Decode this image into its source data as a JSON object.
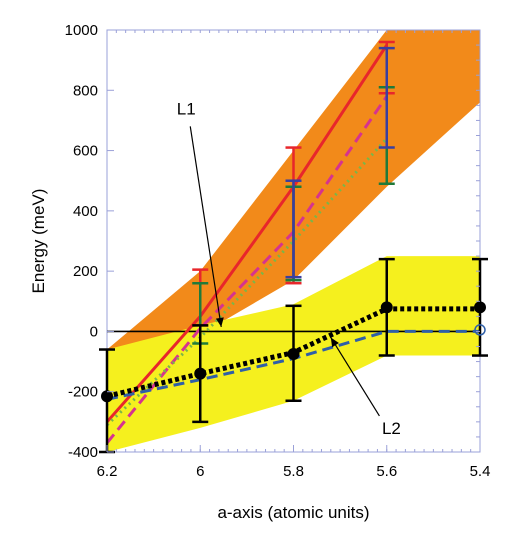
{
  "chart_data": {
    "type": "line",
    "title": "",
    "xlabel": "a-axis (atomic units)",
    "ylabel": "Energy (meV)",
    "xlim": [
      6.2,
      5.4
    ],
    "ylim": [
      -400,
      1000
    ],
    "x_ticks": [
      6.2,
      6.0,
      5.8,
      5.6,
      5.4
    ],
    "x_tick_labels": [
      "6.2",
      "6",
      "5.8",
      "5.6",
      "5.4"
    ],
    "y_ticks": [
      -400,
      -200,
      0,
      200,
      400,
      600,
      800,
      1000
    ],
    "y_tick_labels": [
      "-400",
      "-200",
      "0",
      "200",
      "400",
      "600",
      "800",
      "1000"
    ],
    "grid": false,
    "colors": {
      "orange_band": "#f28a1a",
      "yellow_band": "#f5f01e",
      "red": "#e8262b",
      "magenta": "#d6338f",
      "green": "#7ab648",
      "green_bar": "#1f7a3a",
      "blue": "#2f5fa8",
      "blue_bar": "#3a3fa0",
      "black": "#000000",
      "axis_box": "#9aa0d8"
    },
    "bands": [
      {
        "name": "orange",
        "x": [
          6.2,
          6.0,
          5.8,
          5.6,
          5.4
        ],
        "upper": [
          -60,
          200,
          600,
          1000,
          1000
        ],
        "lower": [
          -400,
          -10,
          170,
          480,
          760
        ]
      },
      {
        "name": "yellow",
        "x": [
          6.2,
          6.0,
          5.8,
          5.6,
          5.4
        ],
        "upper": [
          -60,
          20,
          90,
          250,
          250
        ],
        "lower": [
          -400,
          -320,
          -230,
          -80,
          -80
        ]
      }
    ],
    "series": [
      {
        "style": "solid",
        "color": "#e8262b",
        "x": [
          6.2,
          6.0,
          5.8,
          5.6
        ],
        "y": [
          -300,
          50,
          480,
          950
        ]
      },
      {
        "style": "dashed",
        "color": "#d6338f",
        "x": [
          6.2,
          6.0,
          5.8,
          5.6
        ],
        "y": [
          -370,
          10,
          330,
          780
        ]
      },
      {
        "style": "dotted",
        "color": "#7ab648",
        "x": [
          6.2,
          6.0,
          5.8,
          5.6
        ],
        "y": [
          -310,
          -20,
          300,
          640
        ]
      },
      {
        "style": "dashed",
        "color": "#2f5fa8",
        "x": [
          6.2,
          6.0,
          5.8,
          5.6,
          5.4
        ],
        "y": [
          -225,
          -160,
          -90,
          0,
          0
        ]
      },
      {
        "style": "dotted",
        "color": "#000000",
        "x": [
          6.2,
          6.0,
          5.8,
          5.6,
          5.4
        ],
        "y": [
          -215,
          -140,
          -70,
          75,
          75
        ]
      }
    ],
    "error_bars": [
      {
        "color": "#e8262b",
        "x": [
          6.0,
          5.8,
          5.6
        ],
        "low": [
          20,
          160,
          790
        ],
        "high": [
          205,
          610,
          960
        ]
      },
      {
        "color": "#1f7a3a",
        "x": [
          6.0,
          5.8,
          5.6
        ],
        "low": [
          -40,
          170,
          490
        ],
        "high": [
          160,
          480,
          810
        ]
      },
      {
        "color": "#3a3fa0",
        "x": [
          5.8,
          5.6
        ],
        "low": [
          180,
          610
        ],
        "high": [
          500,
          940
        ]
      },
      {
        "color": "#000000",
        "x": [
          6.2,
          6.0,
          5.8,
          5.6,
          5.4
        ],
        "low": [
          -400,
          -300,
          -230,
          -80,
          -80
        ],
        "high": [
          -60,
          20,
          85,
          240,
          240
        ]
      }
    ],
    "markers": {
      "color": "#000000",
      "x": [
        6.2,
        6.0,
        5.8,
        5.6,
        5.4
      ],
      "y": [
        -215,
        -140,
        -75,
        80,
        80
      ]
    },
    "hollow_markers": {
      "color": "#2f5fa8",
      "x": [
        5.4
      ],
      "y": [
        5
      ]
    },
    "annotations": [
      {
        "text": "L1",
        "text_x": 6.03,
        "text_y": 720,
        "arrow_to_x": 5.955,
        "arrow_to_y": 15
      },
      {
        "text": "L2",
        "text_x": 5.59,
        "text_y": -340,
        "arrow_to_x": 5.72,
        "arrow_to_y": -20
      }
    ]
  }
}
